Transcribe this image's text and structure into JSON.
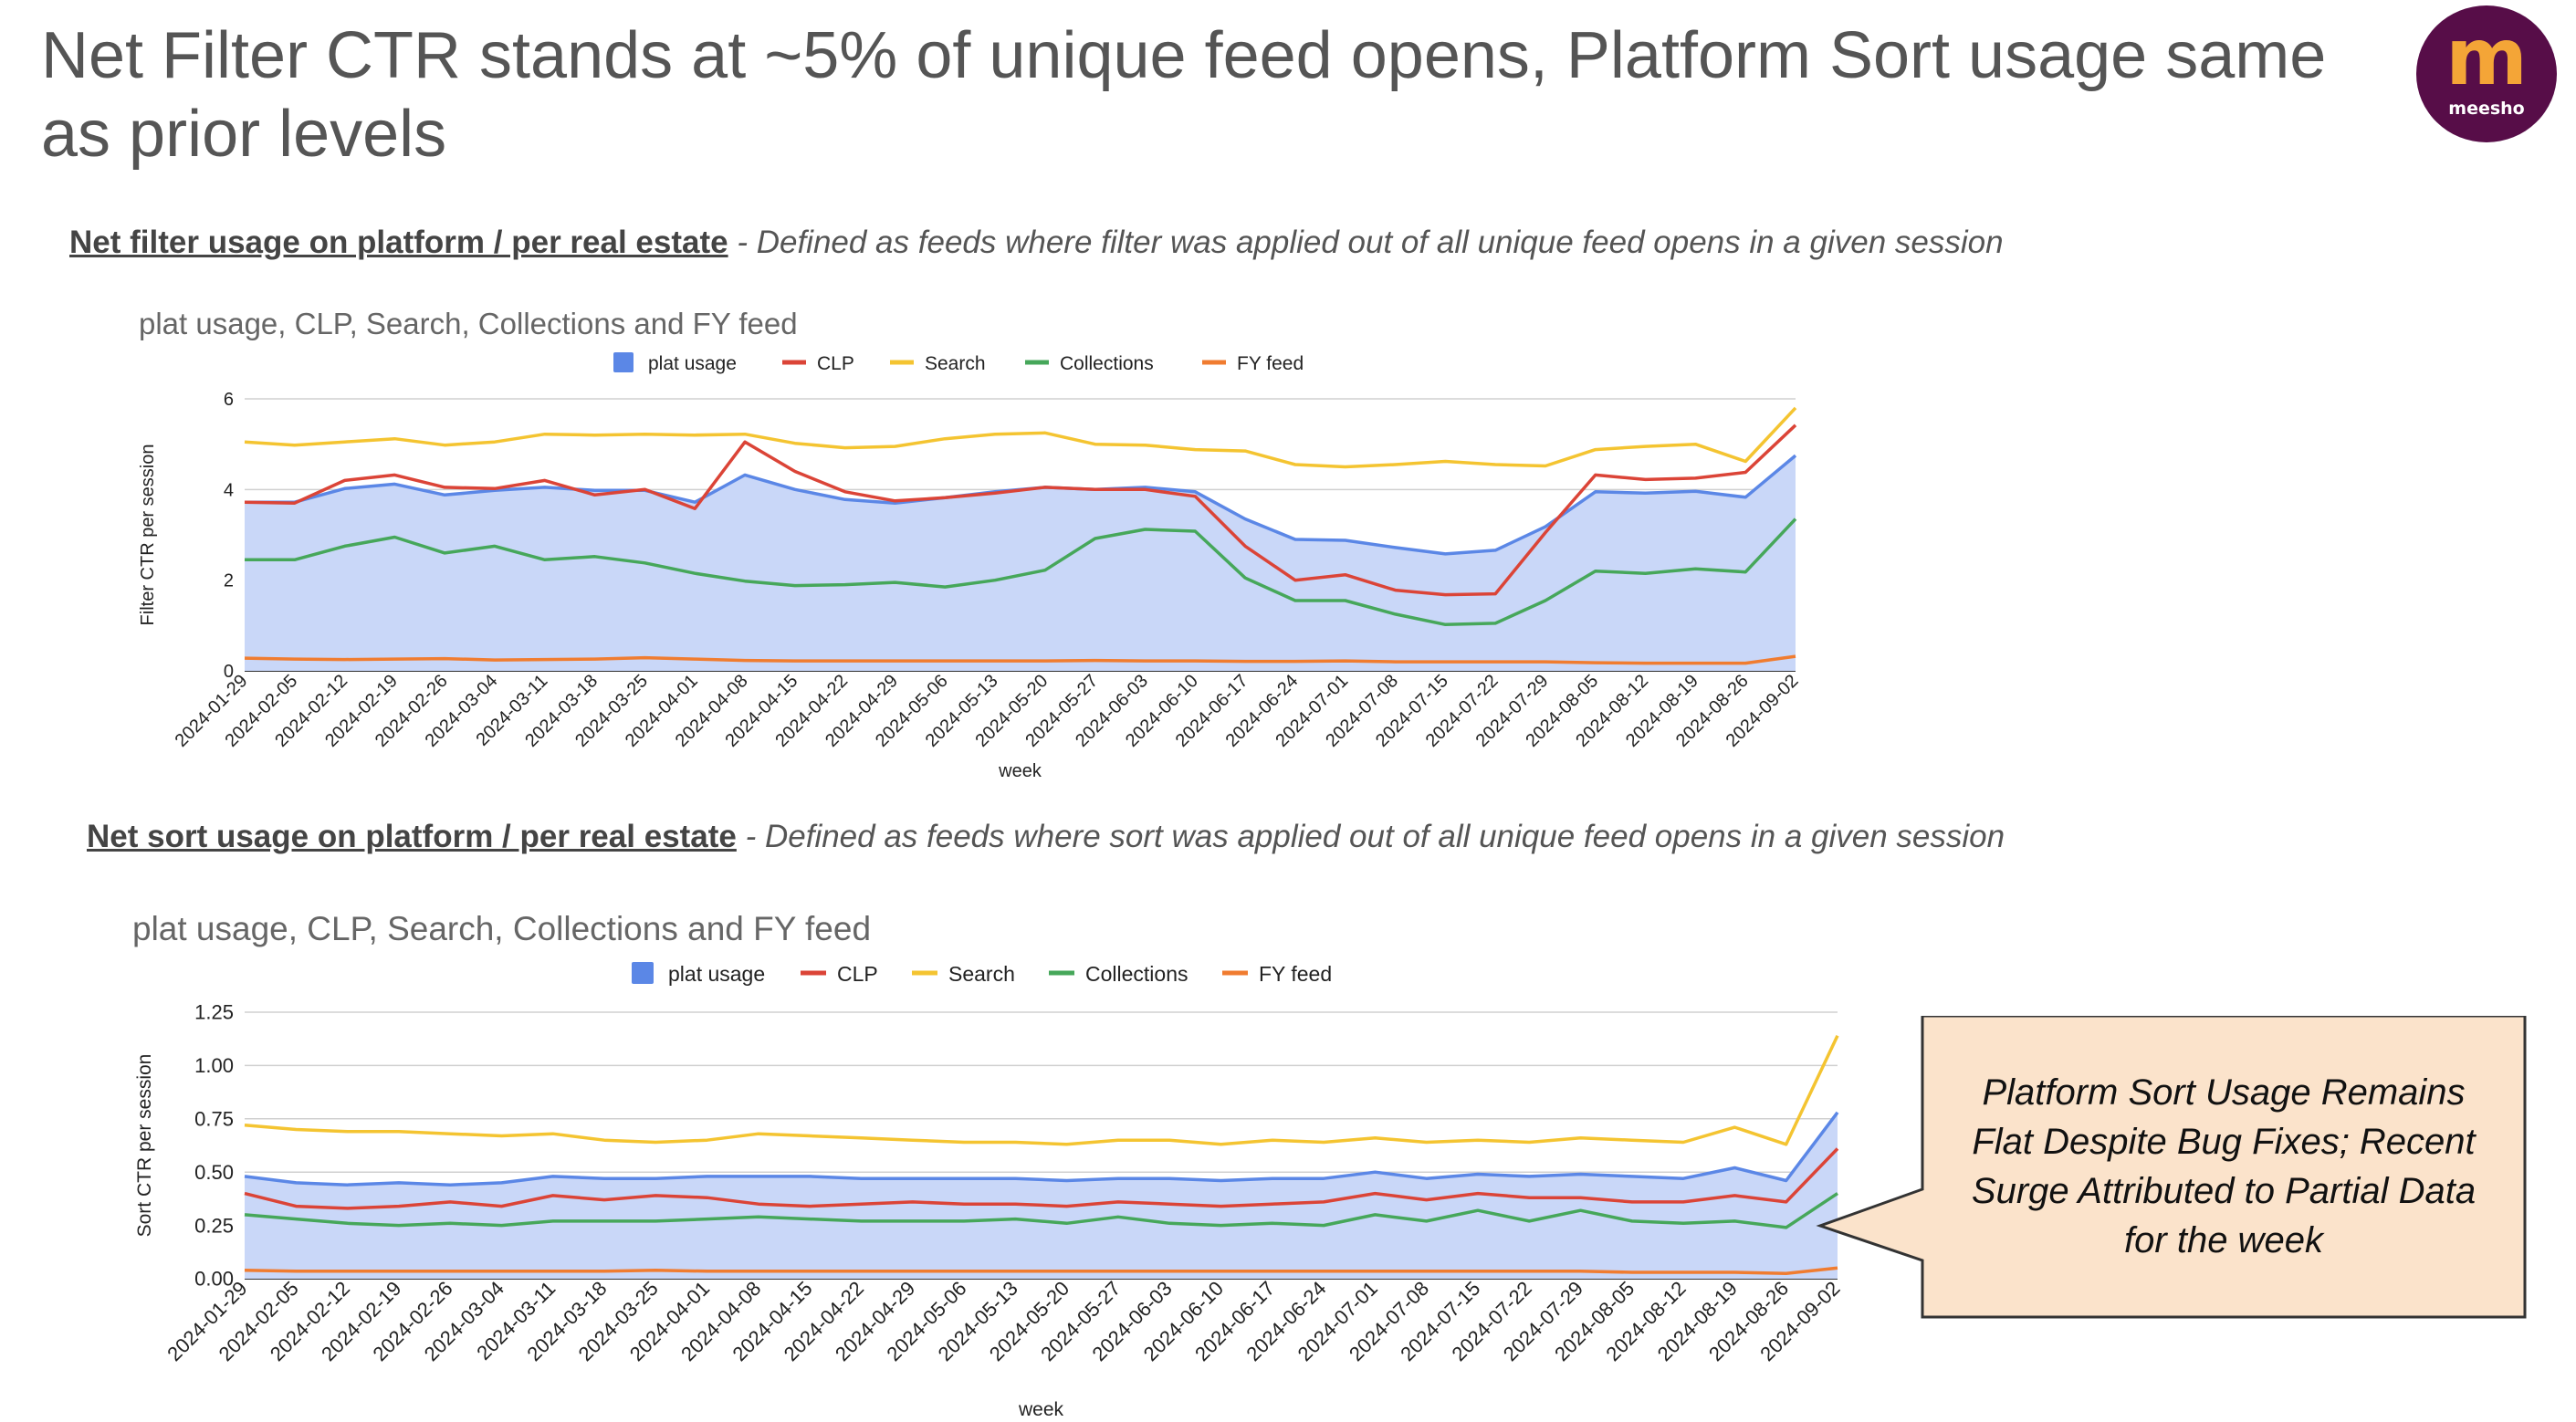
{
  "slide": {
    "title": "Net Filter CTR stands at ~5% of unique feed opens, Platform Sort usage same as prior levels",
    "logo_text": "meesho",
    "logo_mark": "m"
  },
  "sections": {
    "filter": {
      "lead": "Net filter usage on platform / per real estate",
      "desc": " - Defined as feeds where filter was applied out of all unique feed opens in a given session"
    },
    "sort": {
      "lead": "Net sort usage on platform / per real estate",
      "desc": " - Defined as feeds where sort was applied out of all unique feed opens in a given session"
    }
  },
  "callout": {
    "text": "Platform Sort Usage Remains Flat Despite Bug Fixes; Recent Surge Attributed to Partial Data for the week"
  },
  "colors": {
    "plat": "#5b87e6",
    "plat_fill": "#c9d7f8",
    "clp": "#db4437",
    "search": "#f4c431",
    "collections": "#46a75a",
    "fy": "#f07c30",
    "callout_fill": "#fbe3cb"
  },
  "chart_data": [
    {
      "type": "area",
      "title": "plat usage, CLP, Search, Collections and FY feed",
      "xlabel": "week",
      "ylabel": "Filter CTR per session",
      "ylim": [
        0,
        6
      ],
      "yticks": [
        "0",
        "2",
        "4",
        "6"
      ],
      "legend_position": "top",
      "categories": [
        "2024-01-29",
        "2024-02-05",
        "2024-02-12",
        "2024-02-19",
        "2024-02-26",
        "2024-03-04",
        "2024-03-11",
        "2024-03-18",
        "2024-03-25",
        "2024-04-01",
        "2024-04-08",
        "2024-04-15",
        "2024-04-22",
        "2024-04-29",
        "2024-05-06",
        "2024-05-13",
        "2024-05-20",
        "2024-05-27",
        "2024-06-03",
        "2024-06-10",
        "2024-06-17",
        "2024-06-24",
        "2024-07-01",
        "2024-07-08",
        "2024-07-15",
        "2024-07-22",
        "2024-07-29",
        "2024-08-05",
        "2024-08-12",
        "2024-08-19",
        "2024-08-26",
        "2024-09-02"
      ],
      "series": [
        {
          "name": "plat usage",
          "style": "area",
          "values": [
            3.72,
            3.72,
            4.02,
            4.12,
            3.88,
            3.98,
            4.05,
            3.98,
            3.98,
            3.72,
            4.32,
            4.0,
            3.78,
            3.7,
            3.82,
            3.95,
            4.05,
            4.0,
            4.05,
            3.95,
            3.35,
            2.9,
            2.88,
            2.72,
            2.58,
            2.66,
            3.18,
            3.95,
            3.92,
            3.96,
            3.83,
            4.75
          ]
        },
        {
          "name": "CLP",
          "style": "line",
          "values": [
            3.72,
            3.7,
            4.2,
            4.32,
            4.05,
            4.02,
            4.2,
            3.88,
            4.0,
            3.58,
            5.05,
            4.4,
            3.95,
            3.75,
            3.82,
            3.92,
            4.05,
            4.0,
            4.0,
            3.85,
            2.75,
            2.0,
            2.12,
            1.78,
            1.68,
            1.7,
            3.05,
            4.32,
            4.22,
            4.25,
            4.38,
            5.42
          ]
        },
        {
          "name": "Search",
          "style": "line",
          "values": [
            5.05,
            4.98,
            5.05,
            5.12,
            4.98,
            5.05,
            5.22,
            5.2,
            5.22,
            5.2,
            5.22,
            5.02,
            4.92,
            4.95,
            5.12,
            5.22,
            5.25,
            5.0,
            4.98,
            4.88,
            4.85,
            4.55,
            4.5,
            4.55,
            4.62,
            4.55,
            4.52,
            4.88,
            4.95,
            5.0,
            4.62,
            5.8
          ]
        },
        {
          "name": "Collections",
          "style": "line",
          "values": [
            2.45,
            2.45,
            2.75,
            2.95,
            2.6,
            2.75,
            2.45,
            2.52,
            2.38,
            2.15,
            1.98,
            1.88,
            1.9,
            1.95,
            1.85,
            2.0,
            2.22,
            2.92,
            3.12,
            3.08,
            2.05,
            1.55,
            1.55,
            1.25,
            1.02,
            1.05,
            1.55,
            2.2,
            2.15,
            2.25,
            2.18,
            3.35
          ]
        },
        {
          "name": "FY feed",
          "style": "line",
          "values": [
            0.28,
            0.26,
            0.25,
            0.26,
            0.27,
            0.24,
            0.25,
            0.26,
            0.29,
            0.26,
            0.23,
            0.22,
            0.22,
            0.22,
            0.22,
            0.22,
            0.22,
            0.23,
            0.22,
            0.22,
            0.21,
            0.21,
            0.22,
            0.2,
            0.2,
            0.2,
            0.2,
            0.18,
            0.17,
            0.17,
            0.17,
            0.32
          ]
        }
      ]
    },
    {
      "type": "area",
      "title": "plat usage, CLP, Search, Collections and FY feed",
      "xlabel": "week",
      "ylabel": "Sort CTR per session",
      "ylim": [
        0,
        1.25
      ],
      "yticks": [
        "0.00",
        "0.25",
        "0.50",
        "0.75",
        "1.00",
        "1.25"
      ],
      "legend_position": "top",
      "categories": [
        "2024-01-29",
        "2024-02-05",
        "2024-02-12",
        "2024-02-19",
        "2024-02-26",
        "2024-03-04",
        "2024-03-11",
        "2024-03-18",
        "2024-03-25",
        "2024-04-01",
        "2024-04-08",
        "2024-04-15",
        "2024-04-22",
        "2024-04-29",
        "2024-05-06",
        "2024-05-13",
        "2024-05-20",
        "2024-05-27",
        "2024-06-03",
        "2024-06-10",
        "2024-06-17",
        "2024-06-24",
        "2024-07-01",
        "2024-07-08",
        "2024-07-15",
        "2024-07-22",
        "2024-07-29",
        "2024-08-05",
        "2024-08-12",
        "2024-08-19",
        "2024-08-26",
        "2024-09-02"
      ],
      "series": [
        {
          "name": "plat usage",
          "style": "area",
          "values": [
            0.48,
            0.45,
            0.44,
            0.45,
            0.44,
            0.45,
            0.48,
            0.47,
            0.47,
            0.48,
            0.48,
            0.48,
            0.47,
            0.47,
            0.47,
            0.47,
            0.46,
            0.47,
            0.47,
            0.46,
            0.47,
            0.47,
            0.5,
            0.47,
            0.49,
            0.48,
            0.49,
            0.48,
            0.47,
            0.52,
            0.46,
            0.78
          ]
        },
        {
          "name": "CLP",
          "style": "line",
          "values": [
            0.4,
            0.34,
            0.33,
            0.34,
            0.36,
            0.34,
            0.39,
            0.37,
            0.39,
            0.38,
            0.35,
            0.34,
            0.35,
            0.36,
            0.35,
            0.35,
            0.34,
            0.36,
            0.35,
            0.34,
            0.35,
            0.36,
            0.4,
            0.37,
            0.4,
            0.38,
            0.38,
            0.36,
            0.36,
            0.39,
            0.36,
            0.61
          ]
        },
        {
          "name": "Search",
          "style": "line",
          "values": [
            0.72,
            0.7,
            0.69,
            0.69,
            0.68,
            0.67,
            0.68,
            0.65,
            0.64,
            0.65,
            0.68,
            0.67,
            0.66,
            0.65,
            0.64,
            0.64,
            0.63,
            0.65,
            0.65,
            0.63,
            0.65,
            0.64,
            0.66,
            0.64,
            0.65,
            0.64,
            0.66,
            0.65,
            0.64,
            0.71,
            0.63,
            1.14
          ]
        },
        {
          "name": "Collections",
          "style": "line",
          "values": [
            0.3,
            0.28,
            0.26,
            0.25,
            0.26,
            0.25,
            0.27,
            0.27,
            0.27,
            0.28,
            0.29,
            0.28,
            0.27,
            0.27,
            0.27,
            0.28,
            0.26,
            0.29,
            0.26,
            0.25,
            0.26,
            0.25,
            0.3,
            0.27,
            0.32,
            0.27,
            0.32,
            0.27,
            0.26,
            0.27,
            0.24,
            0.4
          ]
        },
        {
          "name": "FY feed",
          "style": "line",
          "values": [
            0.04,
            0.035,
            0.035,
            0.035,
            0.035,
            0.035,
            0.035,
            0.035,
            0.04,
            0.035,
            0.035,
            0.035,
            0.035,
            0.035,
            0.035,
            0.035,
            0.035,
            0.035,
            0.035,
            0.035,
            0.035,
            0.035,
            0.035,
            0.035,
            0.035,
            0.035,
            0.035,
            0.03,
            0.03,
            0.03,
            0.025,
            0.05
          ]
        }
      ]
    }
  ]
}
